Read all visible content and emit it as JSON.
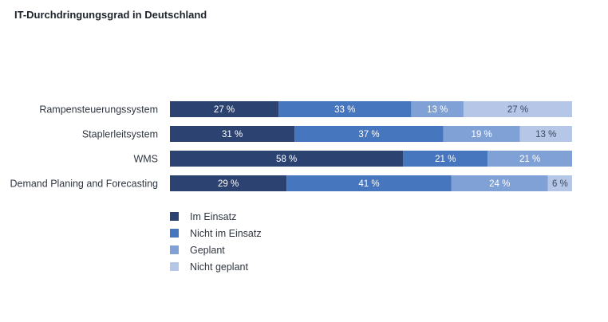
{
  "chart_data": {
    "type": "bar",
    "orientation": "horizontal",
    "stacked": true,
    "title": "IT-Durchdringungsgrad in Deutschland",
    "categories": [
      "Rampensteuerungssystem",
      "Staplerleitsystem",
      "WMS",
      "Demand Planing and Forecasting"
    ],
    "series": [
      {
        "name": "Im Einsatz",
        "values": [
          27,
          31,
          58,
          29
        ],
        "labels": [
          "27 %",
          "31 %",
          "58 %",
          "29 %"
        ]
      },
      {
        "name": "Nicht im Einsatz",
        "values": [
          33,
          37,
          21,
          41
        ],
        "labels": [
          "33 %",
          "37 %",
          "21 %",
          "41 %"
        ]
      },
      {
        "name": "Geplant",
        "values": [
          13,
          19,
          21,
          24
        ],
        "labels": [
          "13 %",
          "19 %",
          "21 %",
          "24 %"
        ]
      },
      {
        "name": "Nicht geplant",
        "values": [
          27,
          13,
          0,
          6
        ],
        "labels": [
          "27 %",
          "13 %",
          "",
          "6 %"
        ]
      }
    ],
    "xlim": [
      0,
      100
    ],
    "grid": false,
    "legend_position": "bottom-left",
    "colors": [
      "#2c4270",
      "#4676bd",
      "#7fa1d6",
      "#b5c6e6"
    ]
  }
}
